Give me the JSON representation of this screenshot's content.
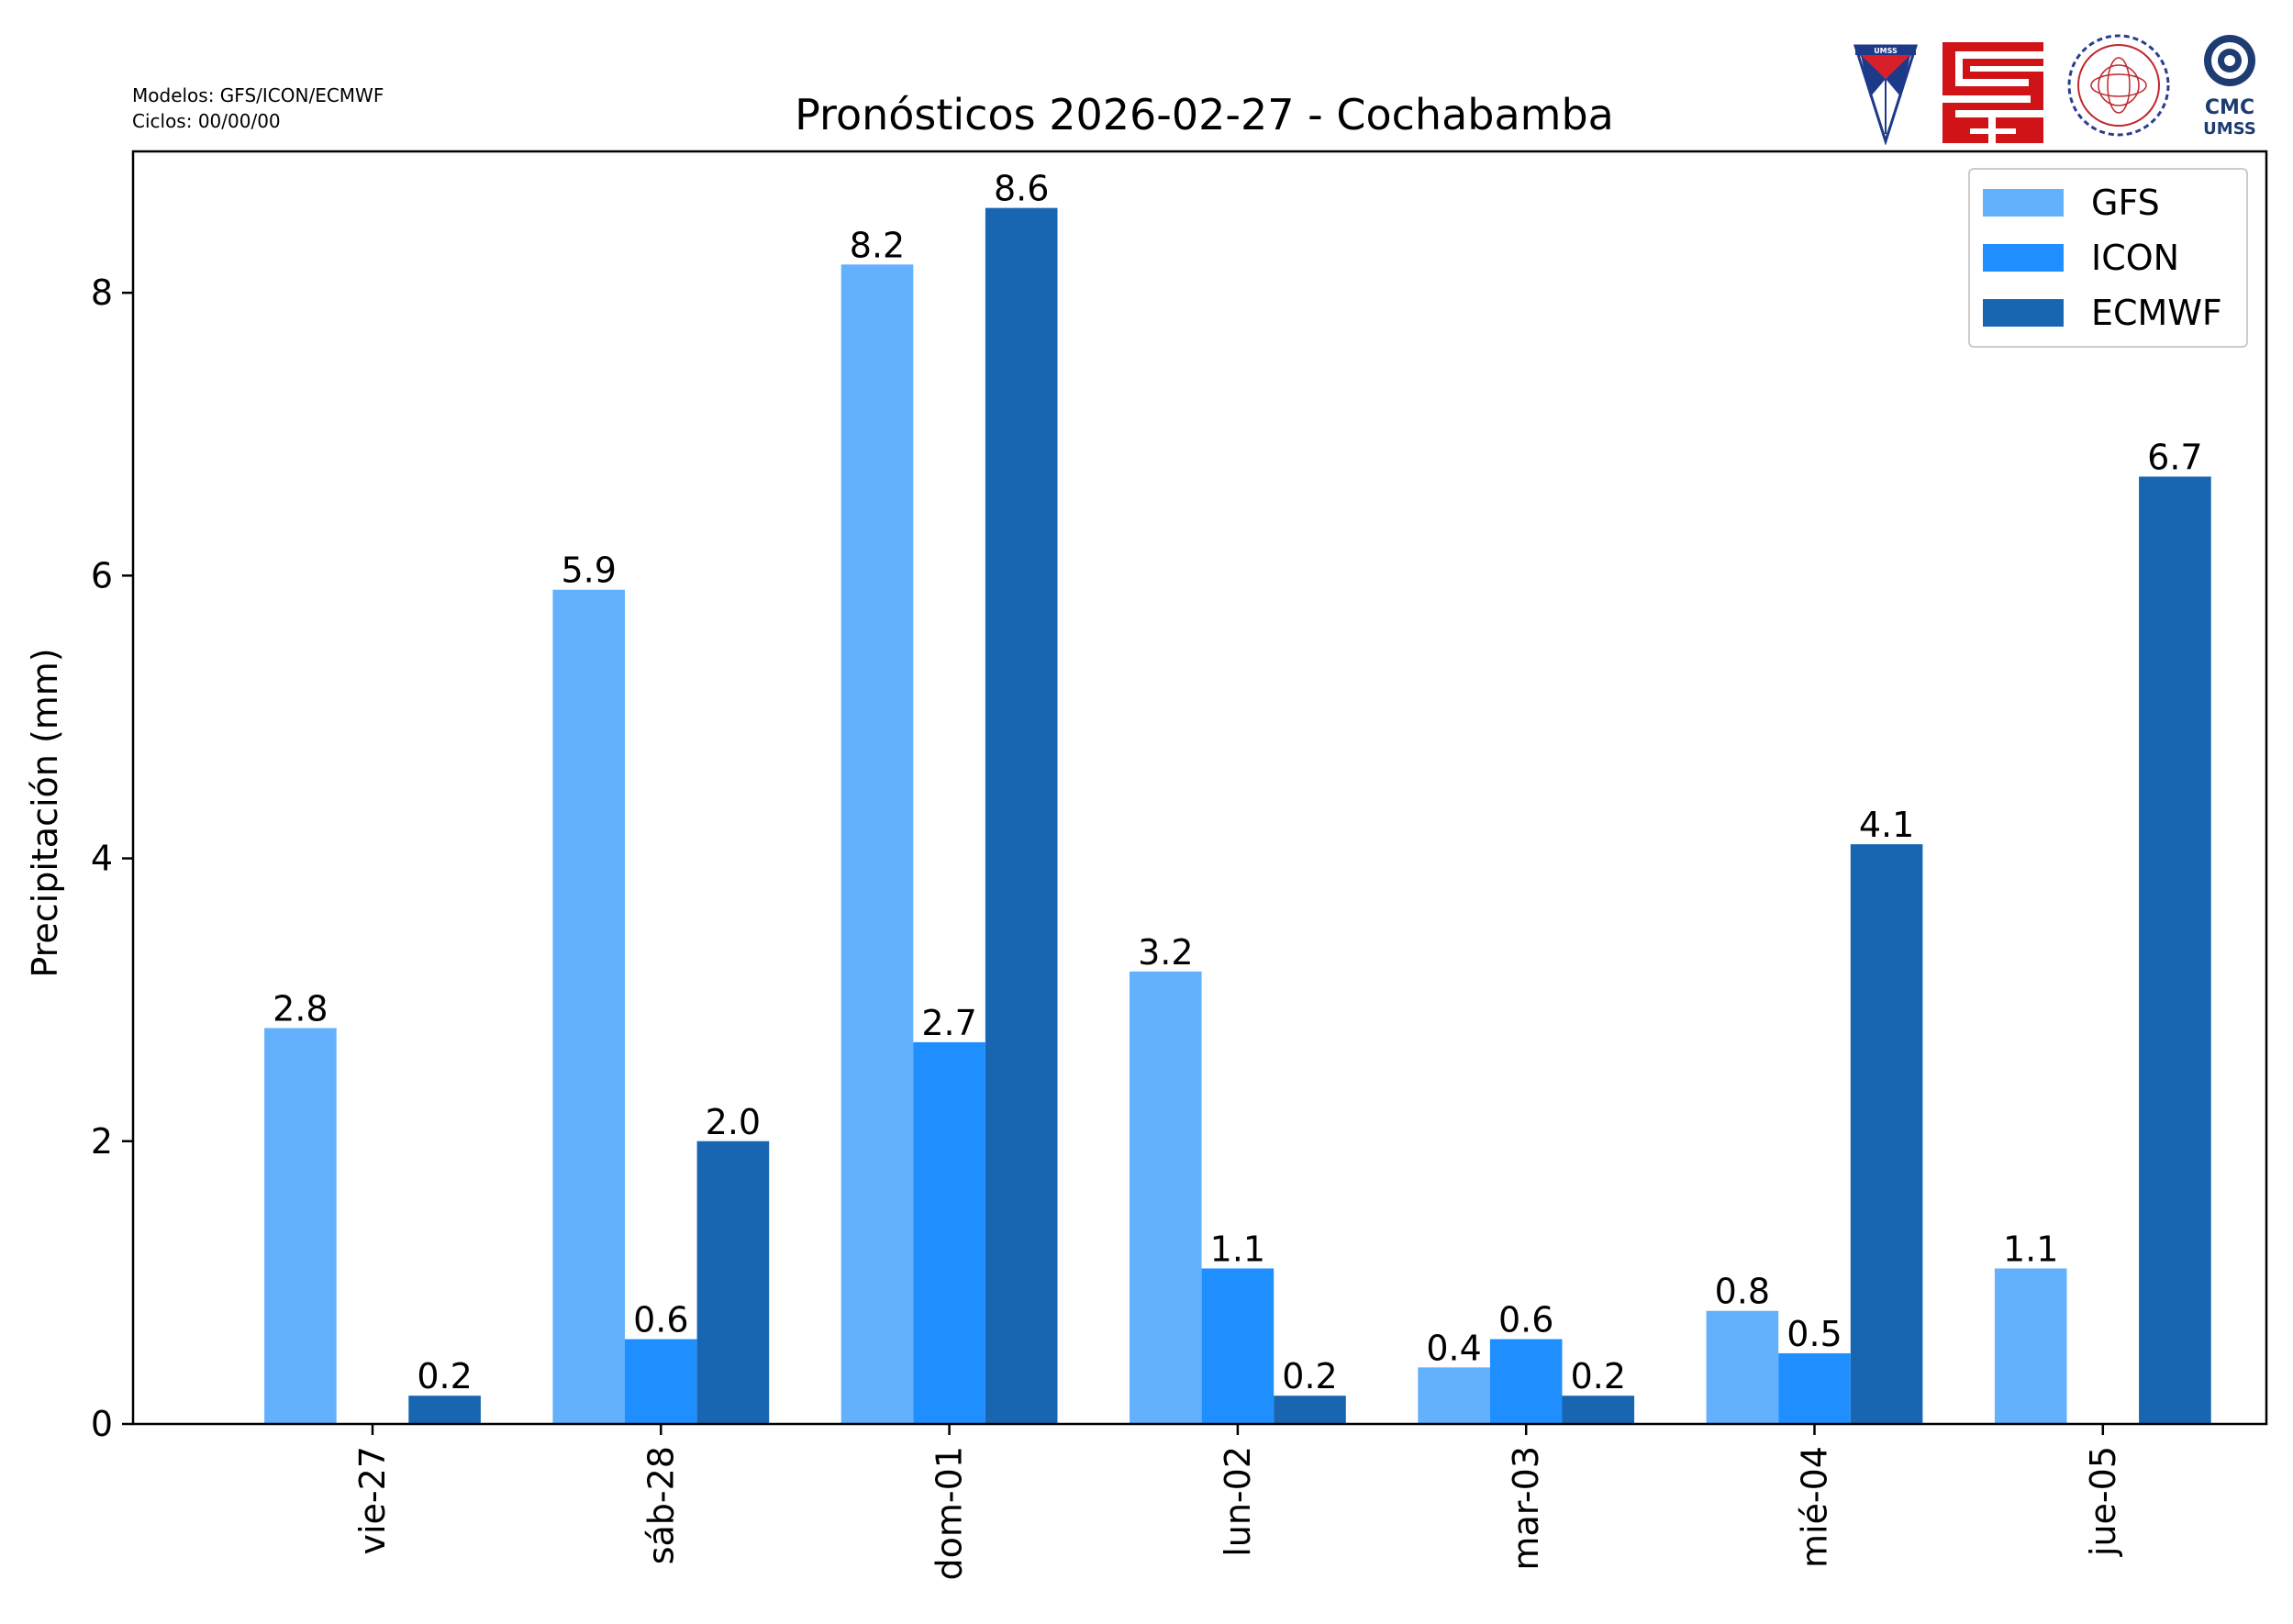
{
  "meta": {
    "models_line": "Modelos: GFS/ICON/ECMWF",
    "cycles_line": "Ciclos: 00/00/00"
  },
  "logos": {
    "umss_shield_text": "UMSS",
    "cmc_text": "CMC",
    "cmc_sub_text": "UMSS"
  },
  "chart_data": {
    "type": "bar",
    "title": "Pronósticos 2026-02-27 - Cochabamba",
    "xlabel": "",
    "ylabel": "Precipitación (mm)",
    "ylim": [
      0,
      9
    ],
    "yticks": [
      0,
      2,
      4,
      6,
      8
    ],
    "grid": false,
    "legend_position": "top-right",
    "categories": [
      "vie-27",
      "sáb-28",
      "dom-01",
      "lun-02",
      "mar-03",
      "mié-04",
      "jue-05"
    ],
    "series": [
      {
        "name": "GFS",
        "color": "#63b0fd",
        "values": [
          2.8,
          5.9,
          8.2,
          3.2,
          0.4,
          0.8,
          1.1
        ],
        "labels": [
          "2.8",
          "5.9",
          "8.2",
          "3.2",
          "0.4",
          "0.8",
          "1.1"
        ]
      },
      {
        "name": "ICON",
        "color": "#1f8fff",
        "values": [
          0,
          0.6,
          2.7,
          1.1,
          0.6,
          0.5,
          0
        ],
        "labels": [
          "",
          "0.6",
          "2.7",
          "1.1",
          "0.6",
          "0.5",
          ""
        ]
      },
      {
        "name": "ECMWF",
        "color": "#1865b1",
        "values": [
          0.2,
          2.0,
          8.6,
          0.2,
          0.2,
          4.1,
          6.7
        ],
        "labels": [
          "0.2",
          "2.0",
          "8.6",
          "0.2",
          "0.2",
          "4.1",
          "6.7"
        ]
      }
    ]
  }
}
